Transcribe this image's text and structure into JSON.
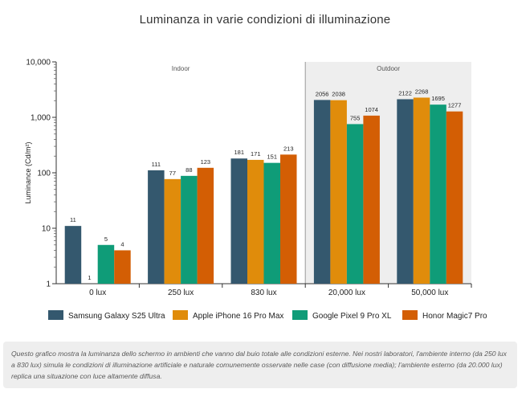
{
  "page": {
    "title": "Luminanza in varie condizioni di illuminazione",
    "note": "Questo grafico mostra la luminanza dello schermo in ambienti che vanno dal buio totale alle condizioni esterne. Nei nostri laboratori, l'ambiente interno (da 250 lux a 830 lux) simula le condizioni di illuminazione artificiale e naturale comunemente osservate nelle case (con diffusione media); l'ambiente esterno (da 20.000 lux) replica una situazione con luce altamente diffusa."
  },
  "chart_data": {
    "type": "bar",
    "title": "Luminanza in varie condizioni di illuminazione",
    "xlabel": "",
    "ylabel": "Luminance (Cd/m²)",
    "yscale": "log",
    "ylim": [
      1,
      10000
    ],
    "yticks": [
      "1",
      "10",
      "100",
      "1,000",
      "10,000"
    ],
    "categories": [
      "0 lux",
      "250 lux",
      "830 lux",
      "20,000 lux",
      "50,000 lux"
    ],
    "regions": [
      {
        "label": "Indoor",
        "from": 0,
        "to": 2,
        "shaded": false
      },
      {
        "label": "Outdoor",
        "from": 3,
        "to": 4,
        "shaded": true
      }
    ],
    "series": [
      {
        "name": "Samsung Galaxy S25 Ultra",
        "color": "#34586e",
        "values": [
          11,
          111,
          181,
          2056,
          2122
        ]
      },
      {
        "name": "Apple iPhone 16 Pro Max",
        "color": "#e08c0b",
        "values": [
          1,
          77,
          171,
          2038,
          2268
        ]
      },
      {
        "name": "Google Pixel 9 Pro XL",
        "color": "#0f9c78",
        "values": [
          5,
          88,
          151,
          755,
          1695
        ]
      },
      {
        "name": "Honor Magic7 Pro",
        "color": "#d35e04",
        "values": [
          4,
          123,
          213,
          1074,
          1277
        ]
      }
    ],
    "legend_position": "bottom",
    "grid": false
  }
}
